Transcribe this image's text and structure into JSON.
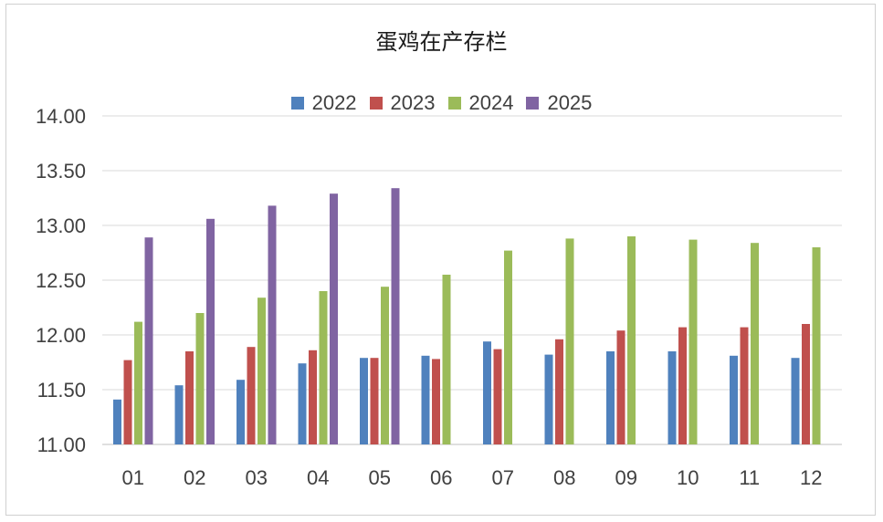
{
  "chart_data": {
    "type": "bar",
    "title": "蛋鸡在产存栏",
    "xlabel": "",
    "ylabel": "",
    "categories": [
      "01",
      "02",
      "03",
      "04",
      "05",
      "06",
      "07",
      "08",
      "09",
      "10",
      "11",
      "12"
    ],
    "ylim": [
      11.0,
      14.0
    ],
    "yticks": [
      "11.00",
      "11.50",
      "12.00",
      "12.50",
      "13.00",
      "13.50",
      "14.00"
    ],
    "grid": true,
    "legend_position": "top",
    "series": [
      {
        "name": "2022",
        "color": "#4f81bd",
        "values": [
          11.41,
          11.54,
          11.59,
          11.74,
          11.79,
          11.81,
          11.94,
          11.82,
          11.85,
          11.85,
          11.81,
          11.79
        ]
      },
      {
        "name": "2023",
        "color": "#c0504d",
        "values": [
          11.77,
          11.85,
          11.89,
          11.86,
          11.79,
          11.78,
          11.87,
          11.96,
          12.04,
          12.07,
          12.07,
          12.1
        ]
      },
      {
        "name": "2024",
        "color": "#9bbb59",
        "values": [
          12.12,
          12.2,
          12.34,
          12.4,
          12.44,
          12.55,
          12.77,
          12.88,
          12.9,
          12.87,
          12.84,
          12.8
        ]
      },
      {
        "name": "2025",
        "color": "#8064a2",
        "values": [
          12.89,
          13.06,
          13.18,
          13.29,
          13.34,
          null,
          null,
          null,
          null,
          null,
          null,
          null
        ]
      }
    ]
  }
}
